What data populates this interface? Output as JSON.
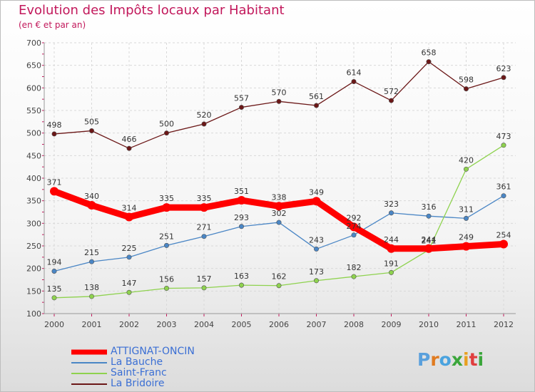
{
  "title": "Evolution des Impôts locaux par Habitant",
  "subtitle": "(en € et par an)",
  "logo": {
    "text": "Proxiti",
    "letter_colors": [
      "#5aa0dc",
      "#e07b20",
      "#4aa3df",
      "#3ba63b",
      "#e8a020",
      "#e03e3e",
      "#3ba63b"
    ]
  },
  "chart_data": {
    "type": "line",
    "x": [
      "2000",
      "2001",
      "2002",
      "2003",
      "2004",
      "2005",
      "2006",
      "2007",
      "2008",
      "2009",
      "2010",
      "2011",
      "2012"
    ],
    "ylim": [
      100,
      700
    ],
    "yticks": [
      100,
      150,
      200,
      250,
      300,
      350,
      400,
      450,
      500,
      550,
      600,
      650,
      700
    ],
    "grid": true,
    "legend_position": "bottom-left",
    "series": [
      {
        "name": "ATTIGNAT-ONCIN",
        "color": "#ff0000",
        "values": [
          371,
          340,
          314,
          335,
          335,
          351,
          338,
          349,
          292,
          244,
          244,
          249,
          254
        ],
        "labels": [
          "371",
          "340",
          "314",
          "335",
          "335",
          "351",
          "338",
          "349",
          "292",
          "244",
          "244",
          "249",
          "254"
        ]
      },
      {
        "name": "La Bauche",
        "color": "#4a86c5",
        "values": [
          194,
          215,
          225,
          251,
          271,
          293,
          302,
          243,
          274,
          323,
          316,
          311,
          361
        ],
        "labels": [
          "194",
          "215",
          "225",
          "251",
          "271",
          "293",
          "302",
          "243",
          "274",
          "323",
          "316",
          "311",
          "361"
        ]
      },
      {
        "name": "Saint-Franc",
        "color": "#8ed24e",
        "values": [
          135,
          138,
          147,
          156,
          157,
          163,
          162,
          173,
          182,
          191,
          241,
          420,
          473
        ],
        "labels": [
          "135",
          "138",
          "147",
          "156",
          "157",
          "163",
          "162",
          "173",
          "182",
          "191",
          "241",
          "420",
          "473"
        ]
      },
      {
        "name": "La Bridoire",
        "color": "#6b1717",
        "values": [
          498,
          505,
          466,
          500,
          520,
          557,
          570,
          561,
          614,
          572,
          658,
          598,
          623
        ],
        "labels": [
          "498",
          "505",
          "466",
          "500",
          "520",
          "557",
          "570",
          "561",
          "614",
          "572",
          "658",
          "598",
          "623"
        ]
      }
    ]
  },
  "legend": [
    {
      "label": "ATTIGNAT-ONCIN",
      "color": "#ff0000"
    },
    {
      "label": "La Bauche",
      "color": "#4a86c5"
    },
    {
      "label": "Saint-Franc",
      "color": "#8ed24e"
    },
    {
      "label": "La Bridoire",
      "color": "#6b1717"
    }
  ]
}
